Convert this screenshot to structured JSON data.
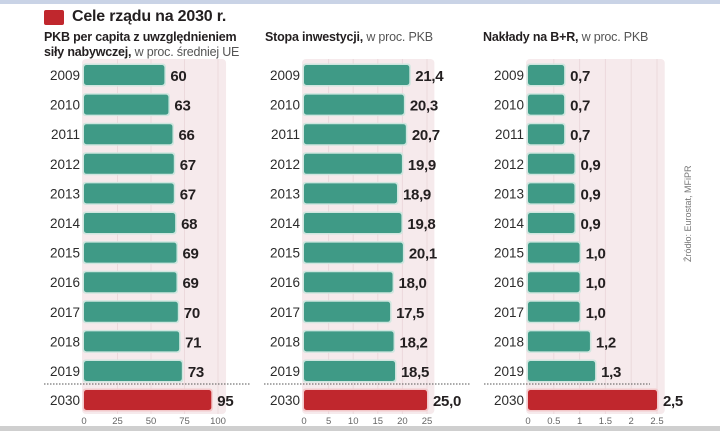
{
  "legend": {
    "label": "Cele rządu na 2030 r.",
    "color": "#c0272d"
  },
  "source": "Źródło: Eurostat, MFiPR",
  "colors": {
    "bar": "#3f9a86",
    "target": "#c0272d",
    "band": "#f6eaec",
    "value_text": "#231f20",
    "year_text": "#2c2c2c"
  },
  "chart_data": [
    {
      "type": "bar",
      "orientation": "horizontal",
      "title_bold": "PKB per capita z uwzględnieniem siły nabywczej,",
      "title_line1": "PKB per capita z uwzględnieniem",
      "title_line2_bold": "siły nabywczej,",
      "title_unit": "w proc. średniej UE",
      "categories": [
        "2009",
        "2010",
        "2011",
        "2012",
        "2013",
        "2014",
        "2015",
        "2016",
        "2017",
        "2018",
        "2019",
        "2030"
      ],
      "values": [
        60,
        63,
        66,
        67,
        67,
        68,
        69,
        69,
        70,
        71,
        73,
        95
      ],
      "value_labels": [
        "60",
        "63",
        "66",
        "67",
        "67",
        "68",
        "69",
        "69",
        "70",
        "71",
        "73",
        "95"
      ],
      "target_category": "2030",
      "xlim": [
        0,
        100
      ],
      "band_max": 106,
      "ticks": [
        0,
        25,
        50,
        75,
        100
      ],
      "tick_labels": [
        "0",
        "25",
        "50",
        "75",
        "100"
      ]
    },
    {
      "type": "bar",
      "orientation": "horizontal",
      "title_bold": "Stopa inwestycji,",
      "title_unit": "w proc. PKB",
      "categories": [
        "2009",
        "2010",
        "2011",
        "2012",
        "2013",
        "2014",
        "2015",
        "2016",
        "2017",
        "2018",
        "2019",
        "2030"
      ],
      "values": [
        21.4,
        20.3,
        20.7,
        19.9,
        18.9,
        19.8,
        20.1,
        18.0,
        17.5,
        18.2,
        18.5,
        25.0
      ],
      "value_labels": [
        "21,4",
        "20,3",
        "20,7",
        "19,9",
        "18,9",
        "19,8",
        "20,1",
        "18,0",
        "17,5",
        "18,2",
        "18,5",
        "25,0"
      ],
      "target_category": "2030",
      "xlim": [
        0,
        25
      ],
      "band_max": 26.5,
      "ticks": [
        0,
        5,
        10,
        15,
        20,
        25
      ],
      "tick_labels": [
        "0",
        "5",
        "10",
        "15",
        "20",
        "25"
      ]
    },
    {
      "type": "bar",
      "orientation": "horizontal",
      "title_bold": "Nakłady na B+R,",
      "title_unit": "w proc. PKB",
      "categories": [
        "2009",
        "2010",
        "2011",
        "2012",
        "2013",
        "2014",
        "2015",
        "2016",
        "2017",
        "2018",
        "2019",
        "2030"
      ],
      "values": [
        0.7,
        0.7,
        0.7,
        0.9,
        0.9,
        0.9,
        1.0,
        1.0,
        1.0,
        1.2,
        1.3,
        2.5
      ],
      "value_labels": [
        "0,7",
        "0,7",
        "0,7",
        "0,9",
        "0,9",
        "0,9",
        "1,0",
        "1,0",
        "1,0",
        "1,2",
        "1,3",
        "2,5"
      ],
      "target_category": "2030",
      "xlim": [
        0,
        2.5
      ],
      "band_max": 2.65,
      "ticks": [
        0,
        0.5,
        1,
        1.5,
        2,
        2.5
      ],
      "tick_labels": [
        "0",
        "0.5",
        "1",
        "1.5",
        "2",
        "2.5"
      ]
    }
  ]
}
